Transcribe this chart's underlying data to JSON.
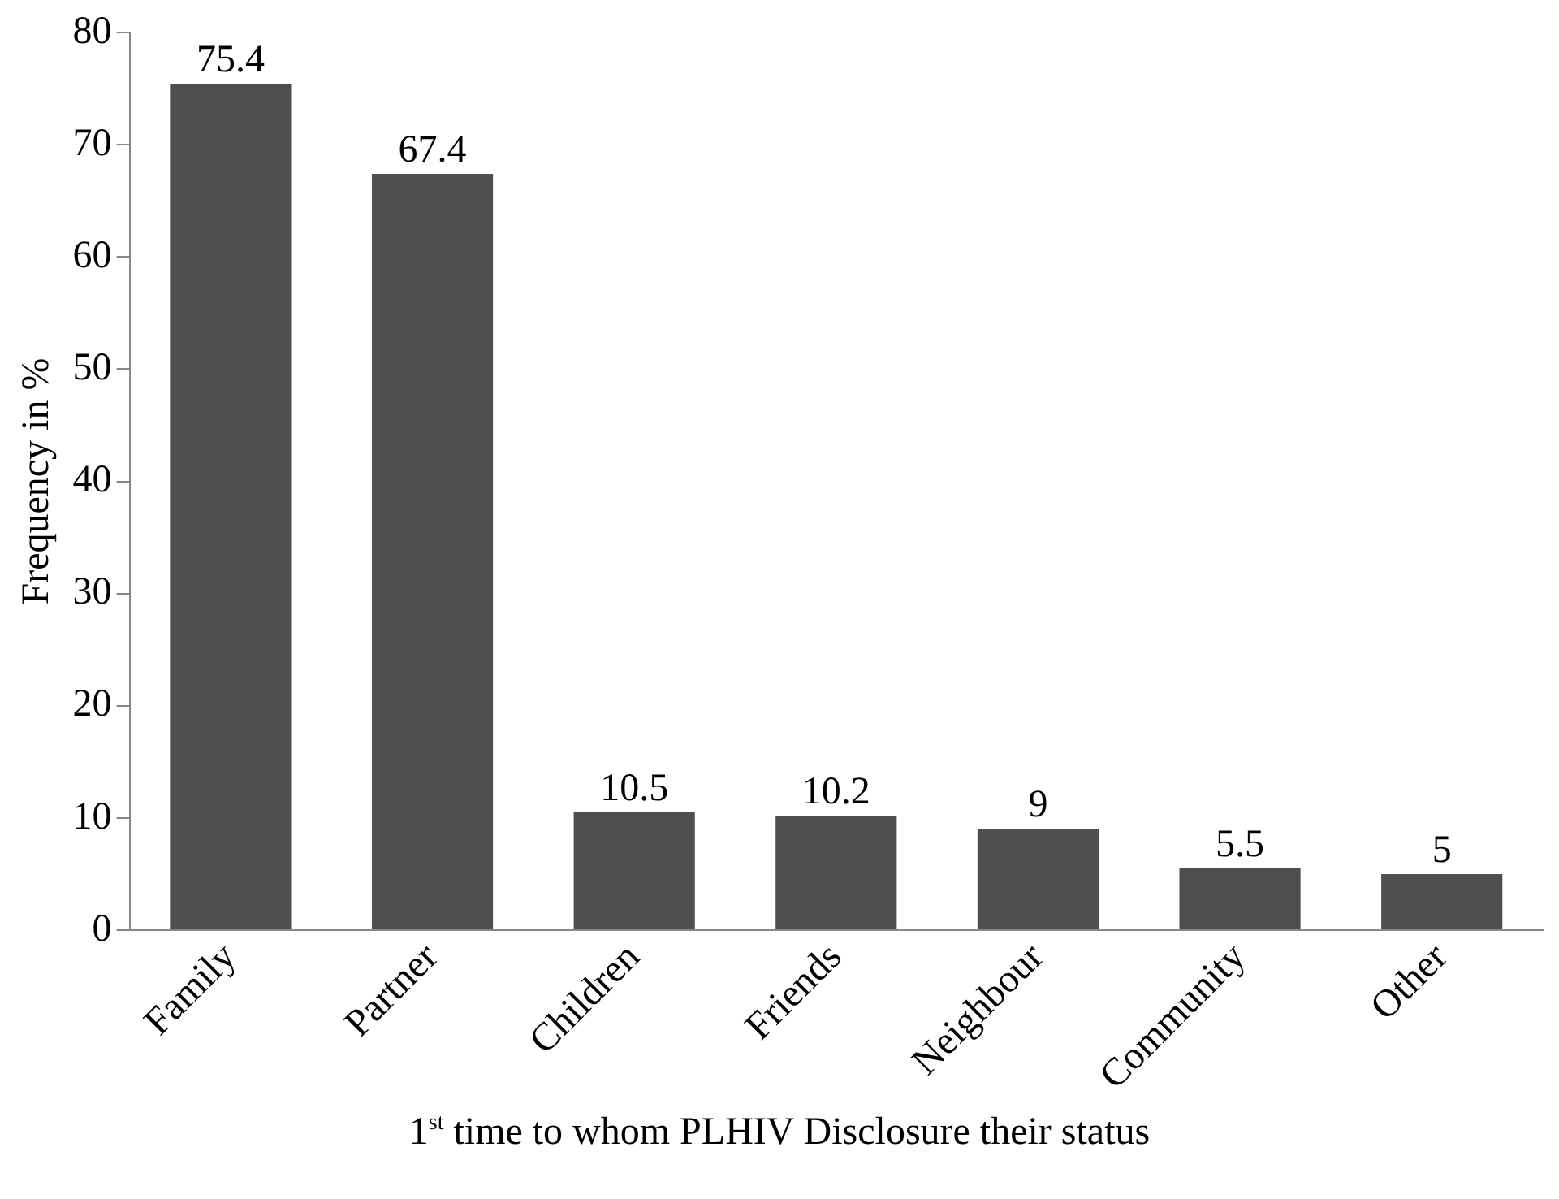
{
  "chart_data": {
    "type": "bar",
    "xlabel": "1$^{st}$ time to whom PLHIV Disclosure their status",
    "ylabel": "Frequency in %",
    "categories": [
      "Family",
      "Partner",
      "Children",
      "Friends",
      "Neighbour",
      "Community",
      "Other"
    ],
    "values": [
      75.4,
      67.4,
      10.5,
      10.2,
      9,
      5.5,
      5
    ],
    "color": "#4f4f4f",
    "ylim": [
      0,
      80
    ],
    "yticks": [
      0,
      10,
      20,
      30,
      40,
      50,
      60,
      70,
      80
    ],
    "grid": false,
    "legend": false,
    "data_labels": true
  }
}
